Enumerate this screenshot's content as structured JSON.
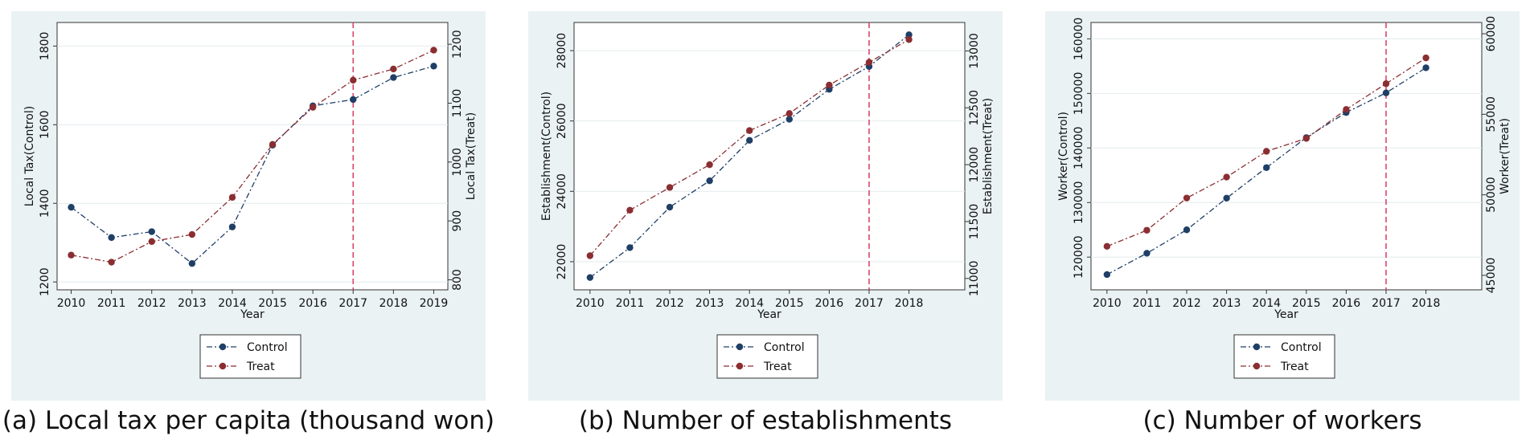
{
  "colors": {
    "control": "#1f3f66",
    "treat": "#8b2e32",
    "vline": "#d8476a",
    "panel_bg": "#eaf2f3"
  },
  "chart_data": [
    {
      "type": "line",
      "caption": "(a) Local tax per capita (thousand won)",
      "xlabel": "Year",
      "ylabel_left": "Local Tax(Control)",
      "ylabel_right": "Local Tax(Treat)",
      "x": [
        2010,
        2011,
        2012,
        2013,
        2014,
        2015,
        2016,
        2017,
        2018,
        2019
      ],
      "x_ticks": [
        "2010",
        "2011",
        "2012",
        "2013",
        "2014",
        "2015",
        "2016",
        "2017",
        "2018",
        "2019"
      ],
      "ylim_left": [
        1180,
        1860
      ],
      "yticks_left": [
        "1200",
        "1400",
        "1600",
        "1800"
      ],
      "ylim_right": [
        783,
        1237
      ],
      "yticks_right": [
        "800",
        "900",
        "1000",
        "1100",
        "1200"
      ],
      "vline_x": 2017,
      "series": [
        {
          "name": "Control",
          "axis": "left",
          "values": [
            1390,
            1313,
            1328,
            1247,
            1340,
            1548,
            1648,
            1664,
            1720,
            1749
          ]
        },
        {
          "name": "Treat",
          "axis": "right",
          "values": [
            842,
            830,
            865,
            877,
            940,
            1030,
            1093,
            1139,
            1158,
            1190
          ]
        }
      ]
    },
    {
      "type": "line",
      "caption": "(b) Number of establishments",
      "xlabel": "Year",
      "ylabel_left": "Establishment(Control)",
      "ylabel_right": "Establishment(Treat)",
      "x": [
        2010,
        2011,
        2012,
        2013,
        2014,
        2015,
        2016,
        2017,
        2018
      ],
      "x_ticks": [
        "2010",
        "2011",
        "2012",
        "2013",
        "2014",
        "2015",
        "2016",
        "2017",
        "2018"
      ],
      "xlim": [
        2009.6,
        2019.4
      ],
      "ylim_left": [
        21200,
        28800
      ],
      "yticks_left": [
        "22000",
        "24000",
        "26000",
        "28000"
      ],
      "ylim_right": [
        10900,
        13250
      ],
      "yticks_right": [
        "11000",
        "11500",
        "12000",
        "12500",
        "13000"
      ],
      "vline_x": 2017,
      "series": [
        {
          "name": "Control",
          "axis": "left",
          "values": [
            21550,
            22400,
            23550,
            24300,
            25450,
            26050,
            26900,
            27550,
            28450
          ]
        },
        {
          "name": "Treat",
          "axis": "right",
          "values": [
            11200,
            11600,
            11800,
            12000,
            12300,
            12450,
            12700,
            12900,
            13100
          ]
        }
      ]
    },
    {
      "type": "line",
      "caption": "(c) Number of workers",
      "xlabel": "Year",
      "ylabel_left": "Worker(Control)",
      "ylabel_right": "Worker(Treat)",
      "x": [
        2010,
        2011,
        2012,
        2013,
        2014,
        2015,
        2016,
        2017,
        2018
      ],
      "x_ticks": [
        "2010",
        "2011",
        "2012",
        "2013",
        "2014",
        "2015",
        "2016",
        "2017",
        "2018"
      ],
      "xlim": [
        2009.6,
        2019.4
      ],
      "ylim_left": [
        114000,
        163000
      ],
      "yticks_left": [
        "120000",
        "130000",
        "140000",
        "150000",
        "160000"
      ],
      "ylim_right": [
        44100,
        60700
      ],
      "yticks_right": [
        "45000",
        "50000",
        "55000",
        "60000"
      ],
      "vline_x": 2017,
      "series": [
        {
          "name": "Control",
          "axis": "left",
          "values": [
            116800,
            120700,
            125000,
            130800,
            136400,
            141900,
            146500,
            150100,
            154700
          ]
        },
        {
          "name": "Treat",
          "axis": "right",
          "values": [
            46800,
            47800,
            49800,
            51100,
            52700,
            53500,
            55300,
            56900,
            58500
          ]
        }
      ]
    }
  ]
}
